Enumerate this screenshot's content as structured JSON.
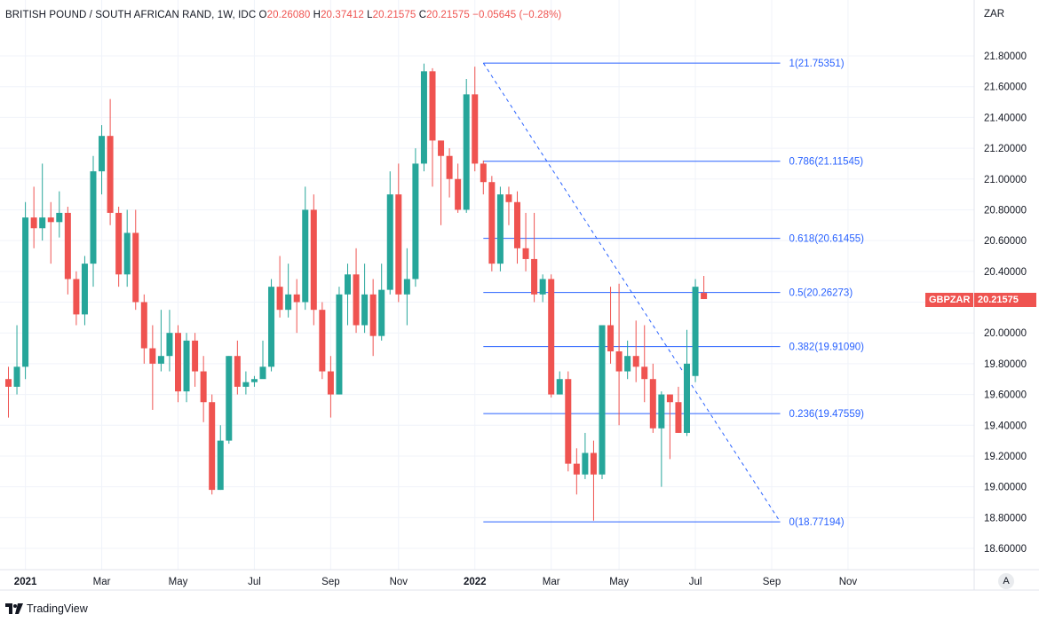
{
  "header": {
    "symbol": "BRITISH POUND / SOUTH AFRICAN RAND, 1W, IDC",
    "o_label": "O",
    "o": "20.26080",
    "h_label": "H",
    "h": "20.37412",
    "l_label": "L",
    "l": "20.21575",
    "c_label": "C",
    "c": "20.21575",
    "change": "−0.05645 (−0.28%)"
  },
  "currency_label": "ZAR",
  "ticker_tag": "GBPZAR",
  "last_price_tag": "20.21575",
  "auto_button": "A",
  "branding": "TradingView",
  "colors": {
    "up": "#26a69a",
    "down": "#ef5350",
    "fib": "#2962ff",
    "grid": "#f0f3fa"
  },
  "chart_data": {
    "type": "candlestick",
    "title": "BRITISH POUND / SOUTH AFRICAN RAND, 1W, IDC",
    "ylim": [
      18.45,
      21.9
    ],
    "y_ticks": [
      "18.60000",
      "18.80000",
      "19.00000",
      "19.20000",
      "19.40000",
      "19.60000",
      "19.80000",
      "20.00000",
      "20.20000",
      "20.40000",
      "20.60000",
      "20.80000",
      "21.00000",
      "21.20000",
      "21.40000",
      "21.60000",
      "21.80000"
    ],
    "x_ticks": [
      {
        "label": "2021",
        "week": 2
      },
      {
        "label": "Mar",
        "week": 11
      },
      {
        "label": "May",
        "week": 20
      },
      {
        "label": "Jul",
        "week": 29
      },
      {
        "label": "Sep",
        "week": 38
      },
      {
        "label": "Nov",
        "week": 46
      },
      {
        "label": "2022",
        "week": 55
      },
      {
        "label": "Mar",
        "week": 64
      },
      {
        "label": "May",
        "week": 72
      },
      {
        "label": "Jul",
        "week": 81
      },
      {
        "label": "Sep",
        "week": 90
      },
      {
        "label": "Nov",
        "week": 99
      }
    ],
    "candles": [
      [
        19.7,
        19.65,
        19.78,
        19.45
      ],
      [
        19.65,
        19.78,
        20.05,
        19.6
      ],
      [
        19.78,
        20.75,
        20.85,
        19.7
      ],
      [
        20.75,
        20.68,
        20.95,
        20.55
      ],
      [
        20.68,
        20.75,
        21.1,
        20.6
      ],
      [
        20.75,
        20.72,
        20.85,
        20.45
      ],
      [
        20.72,
        20.78,
        20.92,
        20.62
      ],
      [
        20.78,
        20.35,
        20.82,
        20.25
      ],
      [
        20.35,
        20.12,
        20.4,
        20.05
      ],
      [
        20.12,
        20.45,
        20.5,
        20.05
      ],
      [
        20.45,
        21.05,
        21.15,
        20.3
      ],
      [
        21.05,
        21.28,
        21.35,
        20.9
      ],
      [
        21.28,
        20.78,
        21.52,
        20.7
      ],
      [
        20.78,
        20.38,
        20.82,
        20.3
      ],
      [
        20.38,
        20.65,
        20.8,
        20.3
      ],
      [
        20.65,
        20.2,
        20.8,
        20.15
      ],
      [
        20.2,
        19.9,
        20.25,
        19.8
      ],
      [
        19.9,
        19.8,
        20.05,
        19.5
      ],
      [
        19.8,
        19.85,
        20.15,
        19.75
      ],
      [
        19.85,
        20.0,
        20.15,
        19.75
      ],
      [
        20.0,
        19.62,
        20.05,
        19.55
      ],
      [
        19.62,
        19.95,
        20.0,
        19.55
      ],
      [
        19.95,
        19.75,
        20.0,
        19.65
      ],
      [
        19.75,
        19.55,
        19.85,
        19.42
      ],
      [
        19.55,
        18.98,
        19.6,
        18.95
      ],
      [
        18.98,
        19.3,
        19.4,
        18.98
      ],
      [
        19.3,
        19.85,
        19.85,
        19.28
      ],
      [
        19.85,
        19.65,
        19.95,
        19.6
      ],
      [
        19.65,
        19.68,
        19.75,
        19.6
      ],
      [
        19.68,
        19.7,
        19.72,
        19.65
      ],
      [
        19.7,
        19.78,
        19.95,
        19.72
      ],
      [
        19.78,
        20.3,
        20.35,
        19.75
      ],
      [
        20.3,
        20.15,
        20.5,
        20.1
      ],
      [
        20.15,
        20.25,
        20.45,
        20.1
      ],
      [
        20.25,
        20.2,
        20.35,
        20.0
      ],
      [
        20.2,
        20.8,
        20.95,
        20.15
      ],
      [
        20.8,
        20.15,
        20.9,
        20.05
      ],
      [
        20.15,
        19.75,
        20.2,
        19.7
      ],
      [
        19.75,
        19.6,
        19.85,
        19.45
      ],
      [
        19.6,
        20.25,
        20.3,
        19.6
      ],
      [
        20.25,
        20.38,
        20.45,
        20.05
      ],
      [
        20.38,
        20.05,
        20.55,
        20.0
      ],
      [
        20.05,
        20.25,
        20.45,
        20.0
      ],
      [
        20.25,
        19.98,
        20.35,
        19.85
      ],
      [
        19.98,
        20.28,
        20.45,
        19.95
      ],
      [
        20.28,
        20.9,
        21.05,
        20.25
      ],
      [
        20.9,
        20.25,
        21.1,
        20.2
      ],
      [
        20.25,
        20.35,
        20.55,
        20.05
      ],
      [
        20.35,
        21.1,
        21.2,
        20.3
      ],
      [
        21.1,
        21.7,
        21.75,
        21.05
      ],
      [
        21.7,
        21.25,
        21.72,
        20.95
      ],
      [
        21.25,
        21.15,
        21.25,
        20.7
      ],
      [
        21.15,
        21.0,
        21.2,
        20.88
      ],
      [
        21.0,
        20.8,
        21.1,
        20.78
      ],
      [
        20.8,
        21.55,
        21.65,
        20.78
      ],
      [
        21.55,
        21.1,
        21.73,
        21.05
      ],
      [
        21.1,
        20.98,
        21.12,
        20.9
      ],
      [
        20.98,
        20.45,
        21.02,
        20.4
      ],
      [
        20.45,
        20.9,
        20.95,
        20.4
      ],
      [
        20.9,
        20.85,
        20.95,
        20.7
      ],
      [
        20.85,
        20.55,
        20.92,
        20.45
      ],
      [
        20.55,
        20.48,
        20.78,
        20.4
      ],
      [
        20.48,
        20.25,
        20.78,
        20.2
      ],
      [
        20.25,
        20.35,
        20.38,
        20.2
      ],
      [
        20.35,
        19.6,
        20.38,
        19.58
      ],
      [
        19.6,
        19.7,
        19.75,
        19.6
      ],
      [
        19.7,
        19.15,
        19.75,
        19.1
      ],
      [
        19.15,
        19.08,
        19.25,
        18.95
      ],
      [
        19.08,
        19.22,
        19.35,
        19.05
      ],
      [
        19.22,
        19.08,
        19.3,
        18.78
      ],
      [
        19.08,
        20.05,
        20.05,
        19.05
      ],
      [
        20.05,
        19.88,
        20.3,
        19.8
      ],
      [
        19.88,
        19.75,
        20.32,
        19.4
      ],
      [
        19.75,
        19.85,
        19.95,
        19.7
      ],
      [
        19.85,
        19.78,
        20.08,
        19.68
      ],
      [
        19.78,
        19.7,
        20.05,
        19.55
      ],
      [
        19.7,
        19.38,
        19.8,
        19.35
      ],
      [
        19.38,
        19.6,
        19.62,
        19.0
      ],
      [
        19.6,
        19.55,
        19.6,
        19.18
      ],
      [
        19.55,
        19.35,
        19.65,
        19.35
      ],
      [
        19.35,
        19.8,
        20.02,
        19.33
      ],
      [
        19.72,
        20.3,
        20.35,
        19.68
      ],
      [
        20.26,
        20.22,
        20.37,
        20.22
      ]
    ],
    "fib_levels": [
      {
        "ratio": "1",
        "value": 21.75351,
        "label": "1(21.75351)"
      },
      {
        "ratio": "0.786",
        "value": 21.11545,
        "label": "0.786(21.11545)"
      },
      {
        "ratio": "0.618",
        "value": 20.61455,
        "label": "0.618(20.61455)"
      },
      {
        "ratio": "0.5",
        "value": 20.26273,
        "label": "0.5(20.26273)"
      },
      {
        "ratio": "0.382",
        "value": 19.9109,
        "label": "0.382(19.91090)"
      },
      {
        "ratio": "0.236",
        "value": 19.47559,
        "label": "0.236(19.47559)"
      },
      {
        "ratio": "0",
        "value": 18.77194,
        "label": "0(18.77194)"
      }
    ],
    "fib_start_week": 56,
    "fib_end_week": 91,
    "last_price": 20.21575
  }
}
